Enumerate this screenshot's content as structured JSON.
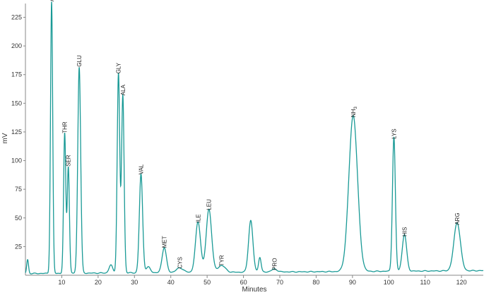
{
  "chart_data": {
    "type": "line",
    "xlabel": "Minutes",
    "ylabel": "mV",
    "xlim": [
      0,
      126
    ],
    "ylim": [
      0,
      237
    ],
    "x_ticks": [
      10,
      20,
      30,
      40,
      50,
      60,
      70,
      80,
      90,
      100,
      110,
      120
    ],
    "y_ticks": [
      25,
      50,
      75,
      100,
      125,
      150,
      175,
      200,
      225
    ],
    "grid": false,
    "line_color": "#1a9a96",
    "baseline": 1.5,
    "peaks": [
      {
        "label": "",
        "x": 0.6,
        "y": 12,
        "w": 0.25
      },
      {
        "label": "ASP",
        "x": 7.2,
        "y": 237,
        "w": 0.3
      },
      {
        "label": "THR",
        "x": 10.8,
        "y": 122,
        "w": 0.3
      },
      {
        "label": "SER",
        "x": 11.8,
        "y": 93,
        "w": 0.3
      },
      {
        "label": "GLU",
        "x": 14.8,
        "y": 180,
        "w": 0.4
      },
      {
        "label": "",
        "x": 23.5,
        "y": 7,
        "w": 0.5
      },
      {
        "label": "GLY",
        "x": 25.6,
        "y": 174,
        "w": 0.35
      },
      {
        "label": "ALA",
        "x": 26.8,
        "y": 155,
        "w": 0.35
      },
      {
        "label": "VAL",
        "x": 31.8,
        "y": 86,
        "w": 0.45
      },
      {
        "label": "",
        "x": 33.8,
        "y": 5,
        "w": 0.6
      },
      {
        "label": "MET",
        "x": 38.2,
        "y": 22,
        "w": 0.6
      },
      {
        "label": "CYS",
        "x": 42.5,
        "y": 4,
        "w": 1.0
      },
      {
        "label": "ILE",
        "x": 47.5,
        "y": 44,
        "w": 0.7
      },
      {
        "label": "LEU",
        "x": 50.5,
        "y": 55,
        "w": 0.75
      },
      {
        "label": "TYR",
        "x": 54.0,
        "y": 6,
        "w": 1.0
      },
      {
        "label": "",
        "x": 62.0,
        "y": 45,
        "w": 0.6
      },
      {
        "label": "",
        "x": 64.5,
        "y": 13,
        "w": 0.35
      },
      {
        "label": "PRO",
        "x": 68.5,
        "y": 2.5,
        "w": 0.8
      },
      {
        "label": "NH",
        "label_sub": "3",
        "x": 90.2,
        "y": 136,
        "w": 1.2
      },
      {
        "label": "LYS",
        "x": 101.4,
        "y": 117,
        "w": 0.4
      },
      {
        "label": "HIS",
        "x": 104.3,
        "y": 32,
        "w": 0.6
      },
      {
        "label": "ARG",
        "x": 118.8,
        "y": 42,
        "w": 0.9
      }
    ]
  }
}
